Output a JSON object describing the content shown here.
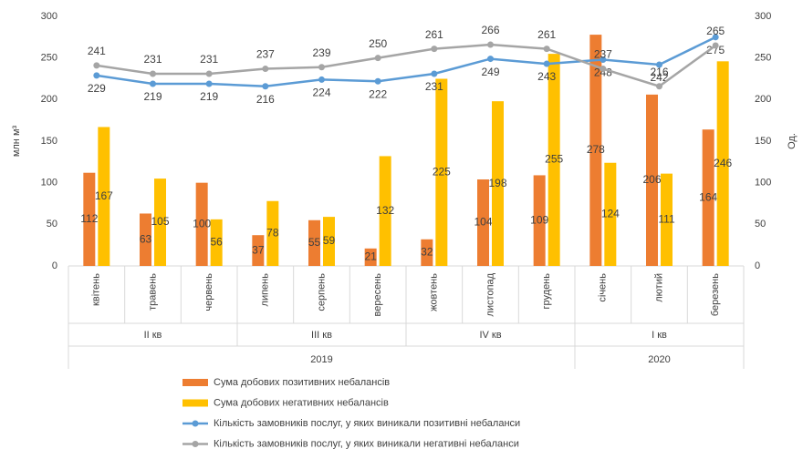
{
  "chart_data": {
    "type": "bar-line",
    "y_label": "млн м³",
    "y2_label": "Од.",
    "categories": [
      "квітень",
      "травень",
      "червень",
      "липень",
      "серпень",
      "вересень",
      "жовтень",
      "листопад",
      "грудень",
      "січень",
      "лютий",
      "березень"
    ],
    "quarters": [
      {
        "name": "II кв",
        "span": 3
      },
      {
        "name": "III кв",
        "span": 3
      },
      {
        "name": "IV кв",
        "span": 3
      },
      {
        "name": "I кв",
        "span": 3
      }
    ],
    "years": [
      {
        "name": "2019",
        "span": 9
      },
      {
        "name": "2020",
        "span": 3
      }
    ],
    "series": [
      {
        "name": "Сума добових позитивних небалансів",
        "kind": "bar",
        "color": "#ED7D31",
        "values": [
          112,
          63,
          100,
          37,
          55,
          21,
          32,
          104,
          109,
          278,
          206,
          164
        ]
      },
      {
        "name": "Сума добових негативних небалансів",
        "kind": "bar",
        "color": "#FFC000",
        "values": [
          167,
          105,
          56,
          78,
          59,
          132,
          225,
          198,
          255,
          124,
          111,
          246
        ]
      },
      {
        "name": "Кількість замовників послуг, у яких виникали позитивні небаланси",
        "kind": "line",
        "axis": "y2",
        "color": "#5B9BD5",
        "values": [
          229,
          219,
          219,
          216,
          224,
          222,
          231,
          249,
          243,
          248,
          242,
          275
        ]
      },
      {
        "name": "Кількість замовників послуг, у яких виникали негативні небаланси",
        "kind": "line",
        "axis": "y2",
        "color": "#A5A5A5",
        "values": [
          241,
          231,
          231,
          237,
          239,
          250,
          261,
          266,
          261,
          237,
          216,
          265
        ]
      }
    ],
    "ylim": [
      0,
      300
    ],
    "yticks": [
      0,
      50,
      100,
      150,
      200,
      250,
      300
    ],
    "y2lim": [
      0,
      300
    ],
    "y2ticks": [
      0,
      50,
      100,
      150,
      200,
      250,
      300
    ]
  }
}
